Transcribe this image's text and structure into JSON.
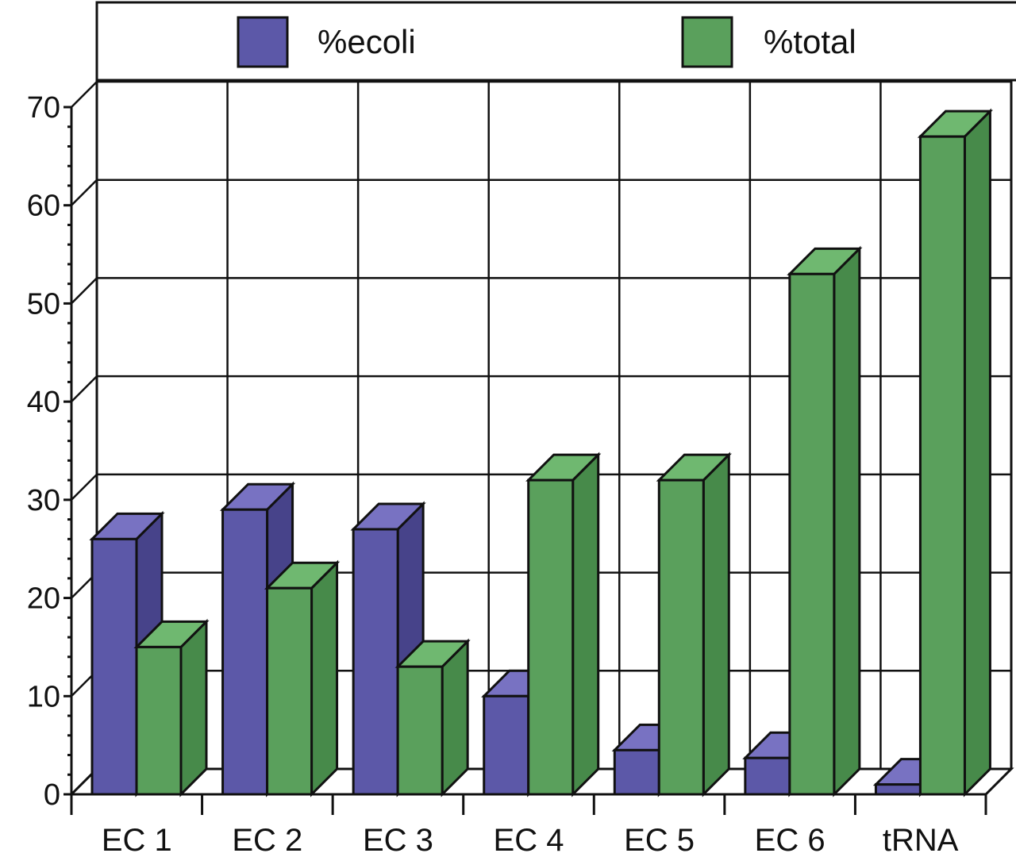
{
  "chart_data": {
    "type": "bar",
    "categories": [
      "EC 1",
      "EC 2",
      "EC 3",
      "EC 4",
      "EC 5",
      "EC 6",
      "tRNA"
    ],
    "series": [
      {
        "name": "%ecoli",
        "values": [
          26,
          29,
          27,
          10,
          4.5,
          3.7,
          1.0
        ],
        "color": "#5c58a8",
        "top": "#7872c2",
        "side": "#47438a"
      },
      {
        "name": "%total",
        "values": [
          15,
          21,
          13,
          32,
          32,
          53,
          67
        ],
        "color": "#5aa05c",
        "top": "#6fb870",
        "side": "#478a4a"
      }
    ],
    "y_ticks": [
      "0",
      "10",
      "20",
      "30",
      "40",
      "50",
      "60",
      "70"
    ],
    "ylim": [
      0,
      70
    ],
    "grid": true,
    "legend_position": "top",
    "title": "",
    "xlabel": "",
    "ylabel": ""
  }
}
